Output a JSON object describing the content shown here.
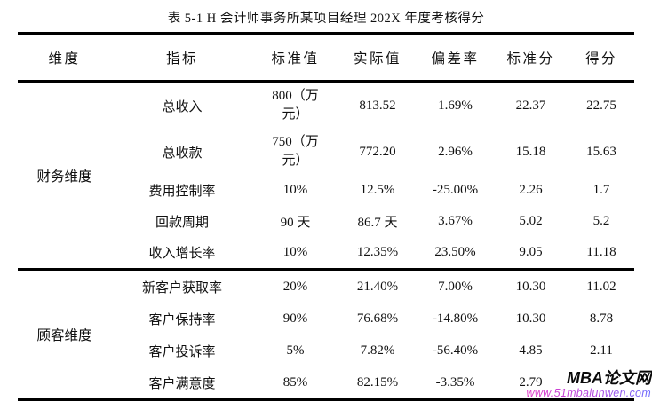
{
  "page": {
    "title": "表 5-1 H 会计师事务所某项目经理 202X 年度考核得分"
  },
  "table": {
    "headers": [
      "维度",
      "指标",
      "标准值",
      "实际值",
      "偏差率",
      "标准分",
      "得分"
    ],
    "sections": [
      {
        "dimension": "财务维度",
        "rows": [
          {
            "indicator": "总收入",
            "standard": "800（万元）",
            "actual": "813.52",
            "deviation": "1.69%",
            "standard_score": "22.37",
            "score": "22.75"
          },
          {
            "indicator": "总收款",
            "standard": "750（万元）",
            "actual": "772.20",
            "deviation": "2.96%",
            "standard_score": "15.18",
            "score": "15.63"
          },
          {
            "indicator": "费用控制率",
            "standard": "10%",
            "actual": "12.5%",
            "deviation": "-25.00%",
            "standard_score": "2.26",
            "score": "1.7"
          },
          {
            "indicator": "回款周期",
            "standard": "90 天",
            "actual": "86.7 天",
            "deviation": "3.67%",
            "standard_score": "5.02",
            "score": "5.2"
          },
          {
            "indicator": "收入增长率",
            "standard": "10%",
            "actual": "12.35%",
            "deviation": "23.50%",
            "standard_score": "9.05",
            "score": "11.18"
          }
        ]
      },
      {
        "dimension": "顾客维度",
        "rows": [
          {
            "indicator": "新客户获取率",
            "standard": "20%",
            "actual": "21.40%",
            "deviation": "7.00%",
            "standard_score": "10.30",
            "score": "11.02"
          },
          {
            "indicator": "客户保持率",
            "standard": "90%",
            "actual": "76.68%",
            "deviation": "-14.80%",
            "standard_score": "10.30",
            "score": "8.78"
          },
          {
            "indicator": "客户投诉率",
            "standard": "5%",
            "actual": "7.82%",
            "deviation": "-56.40%",
            "standard_score": "4.85",
            "score": "2.11"
          },
          {
            "indicator": "客户满意度",
            "standard": "85%",
            "actual": "82.15%",
            "deviation": "-3.35%",
            "standard_score": "2.79",
            "score": ""
          }
        ]
      }
    ]
  },
  "watermark": {
    "brand": "MBA论文网",
    "url": "www.51mbalunwen.com"
  },
  "colors": {
    "text": "#111111",
    "background": "#ffffff",
    "rule": "#000000",
    "watermark_brand": "#0a0a0a",
    "watermark_url_gradient_start": "#e03cc8",
    "watermark_url_gradient_end": "#6b6bff"
  }
}
